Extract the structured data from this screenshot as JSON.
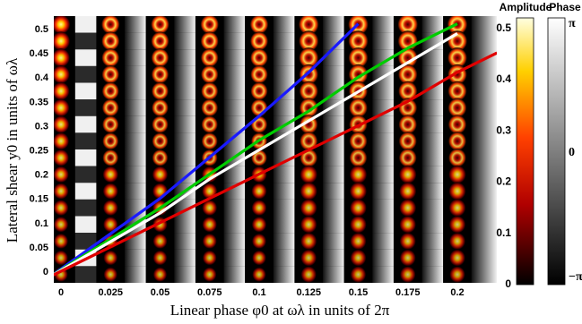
{
  "chart_data": {
    "type": "heatmap",
    "title": "",
    "xlabel": "Linear phase φ0 at ωλ in units of 2π",
    "ylabel": "Lateral shear y0 in units of ωλ",
    "x_ticks": [
      "0",
      "0.025",
      "0.05",
      "0.075",
      "0.1",
      "0.125",
      "0.15",
      "0.175",
      "0.2"
    ],
    "y_ticks": [
      "0",
      "0.05",
      "0.1",
      "0.15",
      "0.2",
      "0.25",
      "0.3",
      "0.35",
      "0.4",
      "0.45",
      "0.5"
    ],
    "xlim": [
      0,
      0.2
    ],
    "ylim": [
      0,
      0.5
    ],
    "rows": 16,
    "cols": 9,
    "series": [
      {
        "color": "#1a1aff",
        "x": [
          -0.005,
          0.05,
          0.075,
          0.1,
          0.125,
          0.15
        ],
        "y": [
          -0.01,
          0.15,
          0.235,
          0.32,
          0.41,
          0.51
        ]
      },
      {
        "color": "#00cc00",
        "x": [
          -0.005,
          0.05,
          0.075,
          0.1,
          0.125,
          0.15,
          0.175,
          0.2
        ],
        "y": [
          -0.01,
          0.13,
          0.2,
          0.27,
          0.33,
          0.4,
          0.46,
          0.51
        ]
      },
      {
        "color": "#ffffff",
        "x": [
          -0.005,
          0.05,
          0.075,
          0.1,
          0.125,
          0.15,
          0.175,
          0.2
        ],
        "y": [
          -0.01,
          0.12,
          0.19,
          0.25,
          0.31,
          0.37,
          0.43,
          0.49
        ]
      },
      {
        "color": "#e00000",
        "x": [
          -0.005,
          0.05,
          0.075,
          0.1,
          0.125,
          0.15,
          0.175,
          0.2,
          0.22
        ],
        "y": [
          -0.01,
          0.1,
          0.15,
          0.2,
          0.25,
          0.3,
          0.35,
          0.41,
          0.45
        ]
      }
    ],
    "colorbars": [
      {
        "label": "Amplitude",
        "ticks": [
          "0",
          "0.1",
          "0.2",
          "0.3",
          "0.4",
          "0.5"
        ],
        "range": [
          0,
          0.5
        ],
        "colormap": "hot"
      },
      {
        "label": "Phase",
        "ticks": [
          "−π",
          "0",
          "π"
        ],
        "range": [
          "−π",
          "π"
        ],
        "colormap": "gray"
      }
    ]
  }
}
